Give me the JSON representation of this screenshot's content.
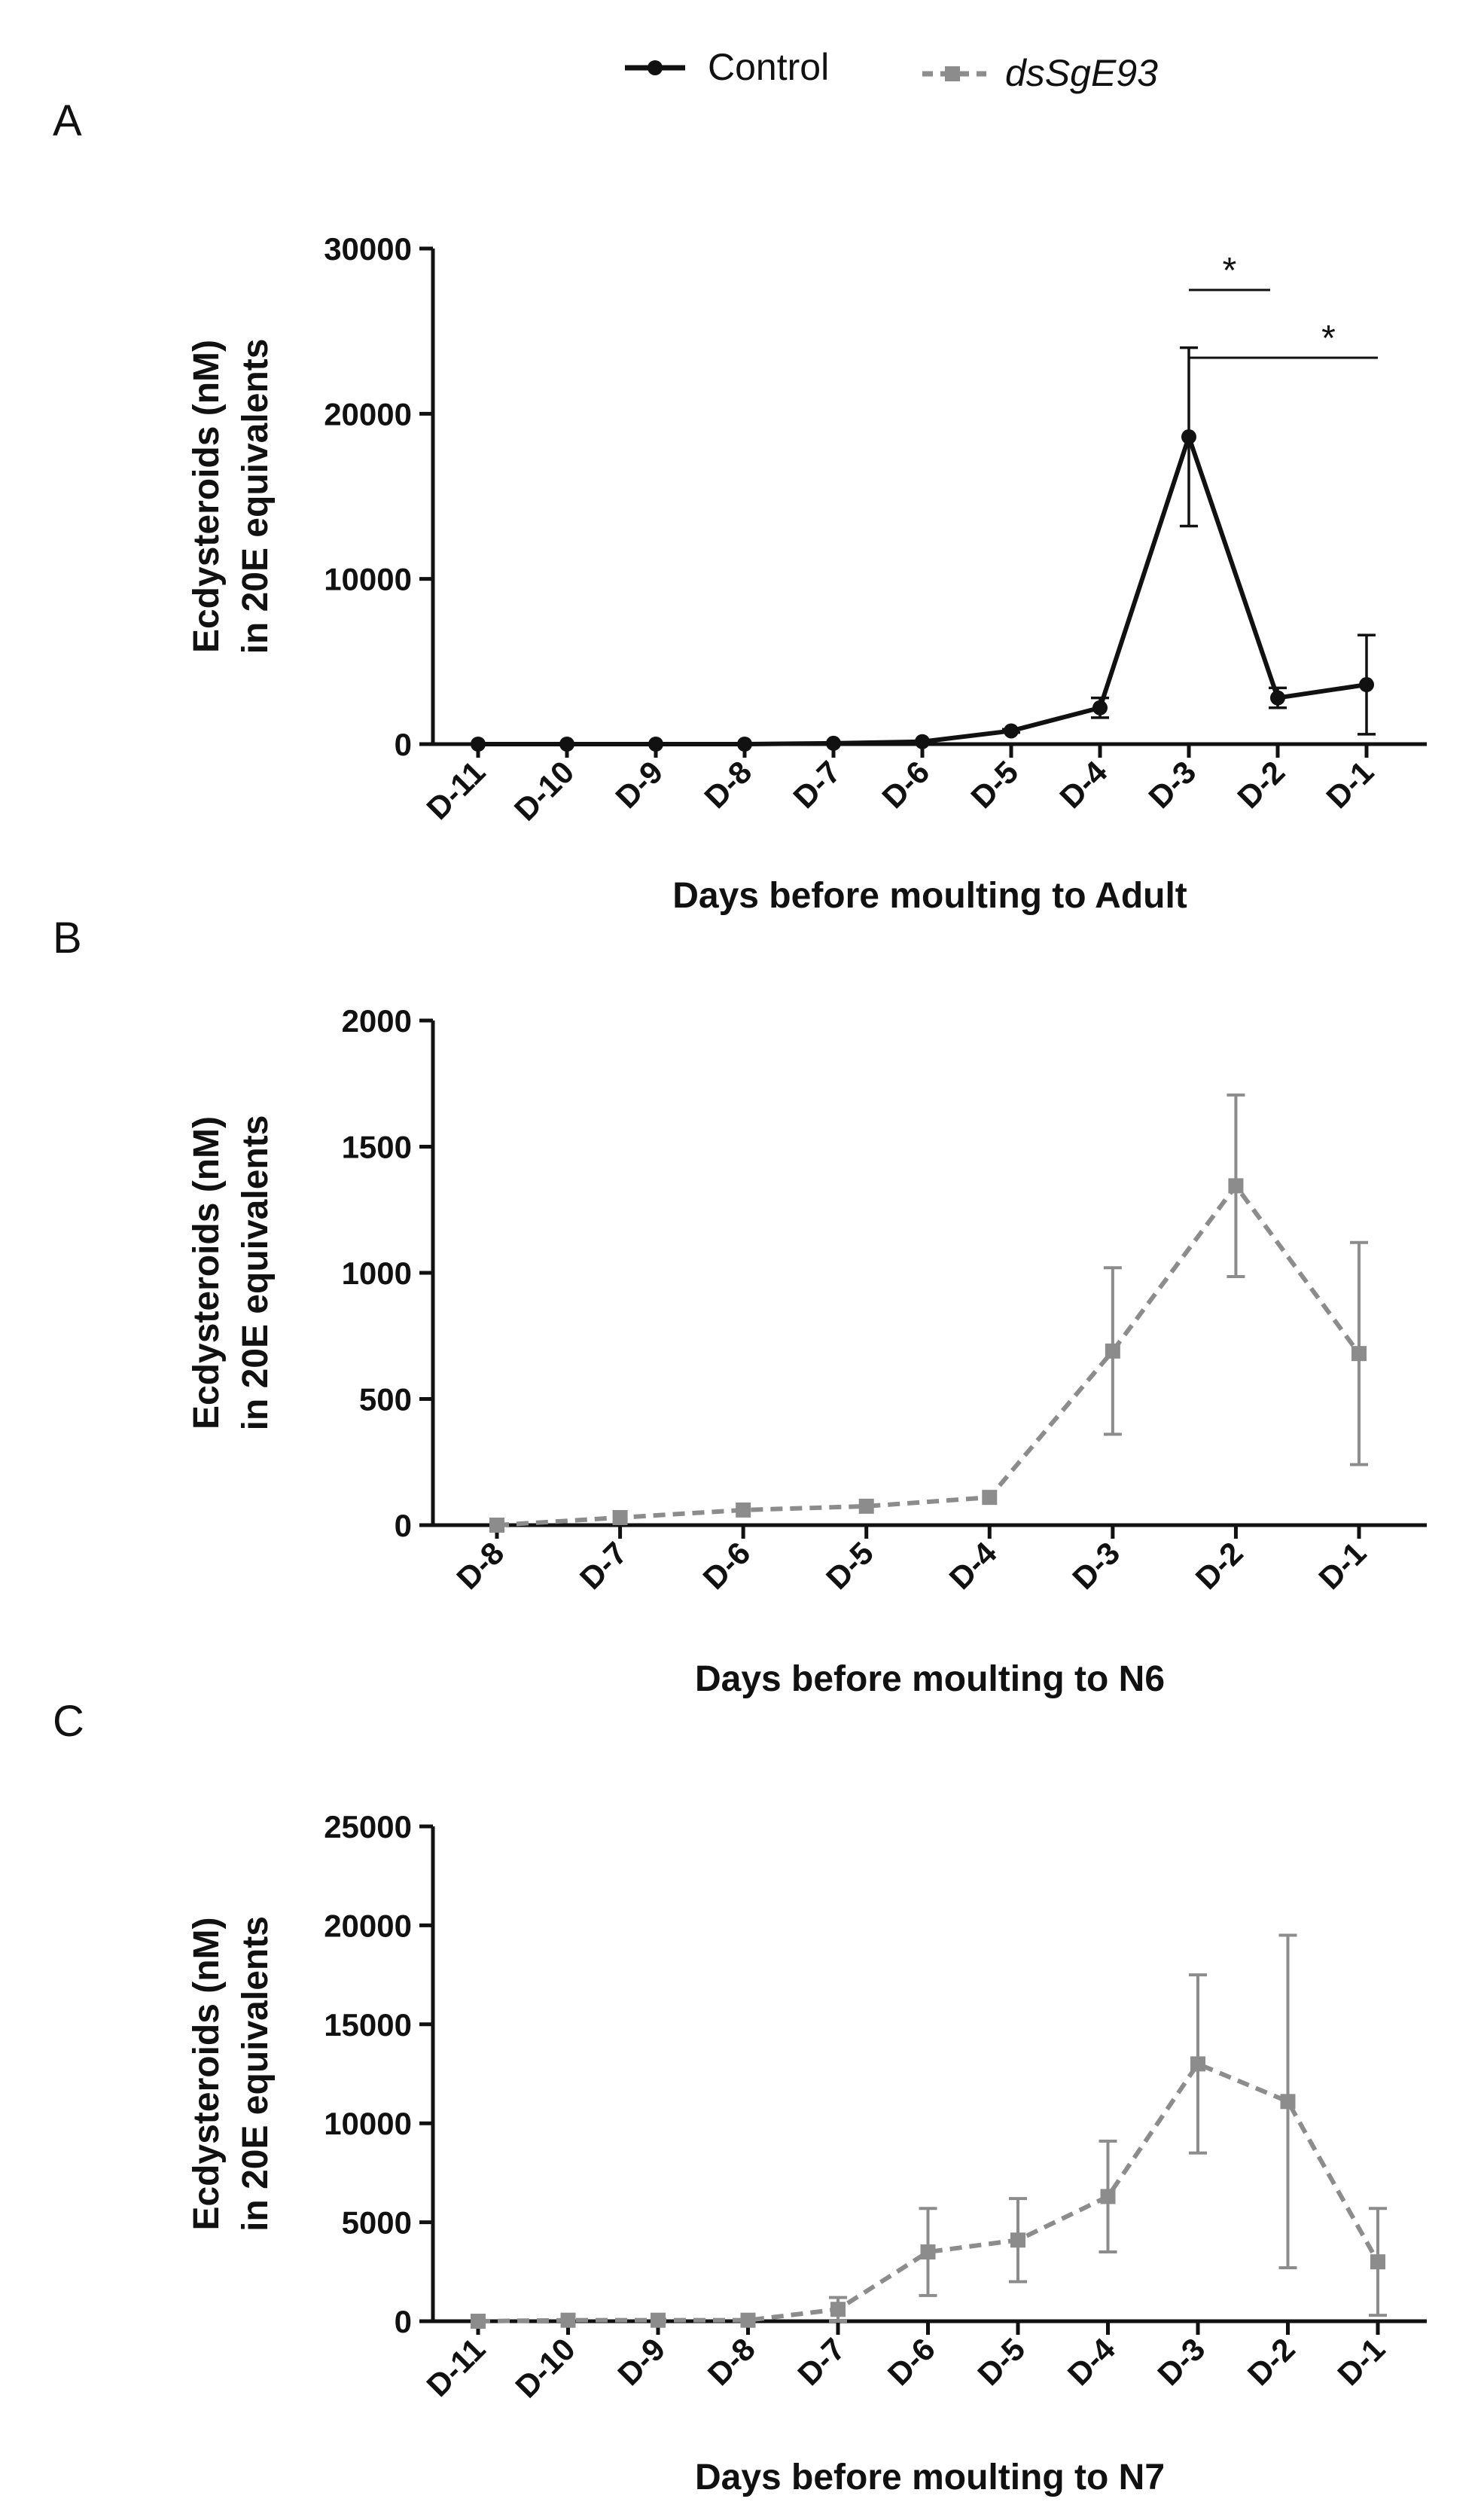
{
  "legend": {
    "control": {
      "label": "Control",
      "color": "#111111"
    },
    "dsrna": {
      "label": "dsSgE93",
      "color": "#8c8c8c"
    }
  },
  "chart_data": [
    {
      "panel": "A",
      "type": "line",
      "series_key": "control",
      "xlabel": "Days before moulting to Adult",
      "ylabel": [
        "Ecdysteroids (nM)",
        "in 20E equivalents"
      ],
      "ylim": [
        0,
        30000
      ],
      "yticks": [
        0,
        10000,
        20000,
        30000
      ],
      "categories": [
        "D-11",
        "D-10",
        "D-9",
        "D-8",
        "D-7",
        "D-6",
        "D-5",
        "D-4",
        "D-3",
        "D-2",
        "D-1"
      ],
      "values": [
        0,
        0,
        0,
        0,
        50,
        150,
        800,
        2200,
        18600,
        2800,
        3600
      ],
      "errors": [
        0,
        0,
        0,
        0,
        0,
        0,
        100,
        600,
        5400,
        600,
        3000
      ],
      "significance": [
        {
          "from": "D-3",
          "to": "D-2",
          "label": "*",
          "level": 1
        },
        {
          "from": "D-3",
          "to": "D-1",
          "label": "*",
          "level": 2
        }
      ]
    },
    {
      "panel": "B",
      "type": "line",
      "series_key": "dsrna",
      "xlabel": "Days before moulting to N6",
      "ylabel": [
        "Ecdysteroids (nM)",
        "in 20E equivalents"
      ],
      "ylim": [
        0,
        2000
      ],
      "yticks": [
        0,
        500,
        1000,
        1500,
        2000
      ],
      "categories": [
        "D-8",
        "D-7",
        "D-6",
        "D-5",
        "D-4",
        "D-3",
        "D-2",
        "D-1"
      ],
      "values": [
        0,
        30,
        60,
        75,
        110,
        690,
        1345,
        680
      ],
      "errors": [
        0,
        0,
        0,
        0,
        0,
        330,
        360,
        440
      ],
      "significance": []
    },
    {
      "panel": "C",
      "type": "line",
      "series_key": "dsrna",
      "xlabel": "Days before moulting to N7",
      "ylabel": [
        "Ecdysteroids (nM)",
        "in 20E equivalents"
      ],
      "ylim": [
        0,
        25000
      ],
      "yticks": [
        0,
        5000,
        10000,
        15000,
        20000,
        25000
      ],
      "categories": [
        "D-11",
        "D-10",
        "D-9",
        "D-8",
        "D-7",
        "D-6",
        "D-5",
        "D-4",
        "D-3",
        "D-2",
        "D-1"
      ],
      "values": [
        0,
        50,
        50,
        50,
        600,
        3500,
        4100,
        6300,
        13000,
        11100,
        3000
      ],
      "errors": [
        0,
        0,
        0,
        0,
        600,
        2200,
        2100,
        2800,
        4500,
        8400,
        2700
      ],
      "significance": []
    }
  ]
}
